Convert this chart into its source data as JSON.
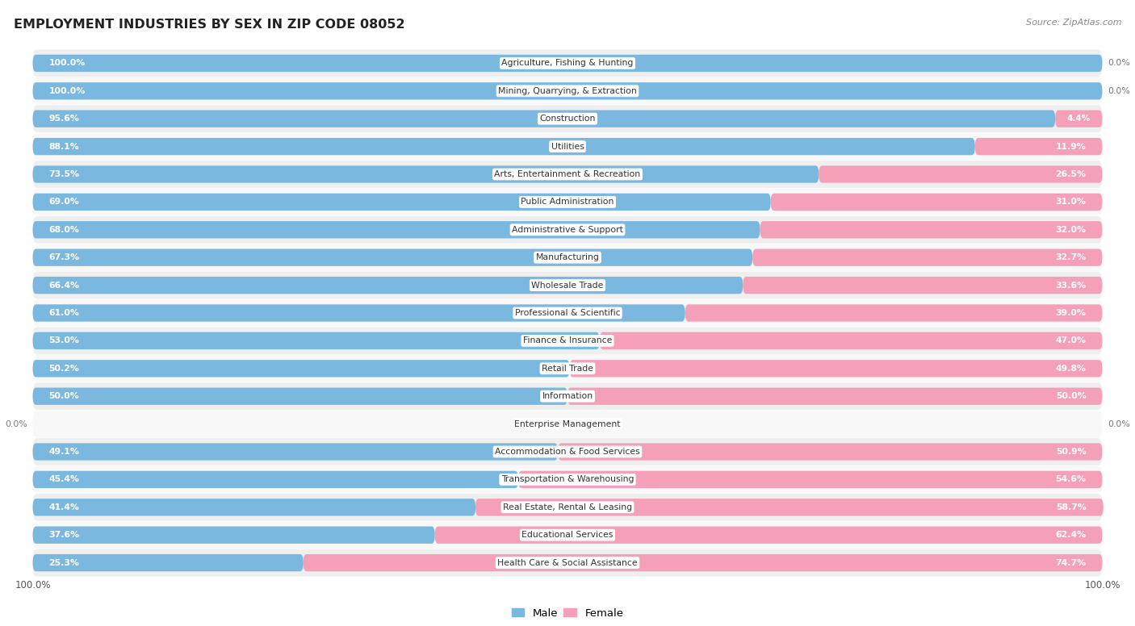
{
  "title": "EMPLOYMENT INDUSTRIES BY SEX IN ZIP CODE 08052",
  "source": "Source: ZipAtlas.com",
  "male_color": "#7bb8e0",
  "female_color": "#f4a0b8",
  "bg_color": "#ffffff",
  "row_bg_color": "#e8e8e8",
  "categories": [
    "Agriculture, Fishing & Hunting",
    "Mining, Quarrying, & Extraction",
    "Construction",
    "Utilities",
    "Arts, Entertainment & Recreation",
    "Public Administration",
    "Administrative & Support",
    "Manufacturing",
    "Wholesale Trade",
    "Professional & Scientific",
    "Finance & Insurance",
    "Retail Trade",
    "Information",
    "Enterprise Management",
    "Accommodation & Food Services",
    "Transportation & Warehousing",
    "Real Estate, Rental & Leasing",
    "Educational Services",
    "Health Care & Social Assistance"
  ],
  "male_pct": [
    100.0,
    100.0,
    95.6,
    88.1,
    73.5,
    69.0,
    68.0,
    67.3,
    66.4,
    61.0,
    53.0,
    50.2,
    50.0,
    0.0,
    49.1,
    45.4,
    41.4,
    37.6,
    25.3
  ],
  "female_pct": [
    0.0,
    0.0,
    4.4,
    11.9,
    26.5,
    31.0,
    32.0,
    32.7,
    33.6,
    39.0,
    47.0,
    49.8,
    50.0,
    0.0,
    50.9,
    54.6,
    58.7,
    62.4,
    74.7
  ]
}
